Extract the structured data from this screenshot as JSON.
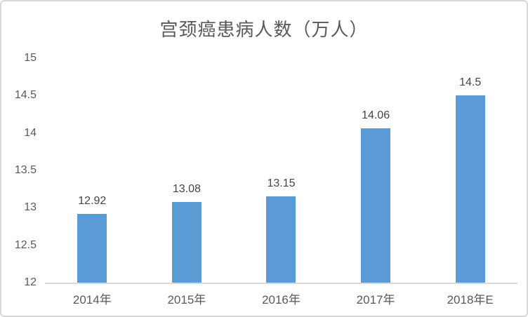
{
  "chart_data": {
    "type": "bar",
    "title": "宫颈癌患病人数（万人）",
    "categories": [
      "2014年",
      "2015年",
      "2016年",
      "2017年",
      "2018年E"
    ],
    "values": [
      12.92,
      13.08,
      13.15,
      14.06,
      14.5
    ],
    "value_labels": [
      "12.92",
      "13.08",
      "13.15",
      "14.06",
      "14.5"
    ],
    "ylim": [
      12,
      15
    ],
    "ytick_labels": [
      "15",
      "14.5",
      "14",
      "13.5",
      "13",
      "12.5",
      "12"
    ],
    "ytick_values": [
      15,
      14.5,
      14,
      13.5,
      13,
      12.5,
      12
    ],
    "grid": false,
    "legend": false,
    "xlabel": "",
    "ylabel": "",
    "bar_color": "#5b9bd5",
    "axis_line_color": "#d9d9d9",
    "frame_border_color": "#d8d8d8",
    "title_color": "#595959",
    "tick_label_color": "#595959",
    "value_label_color": "#444444",
    "background_color": "#ffffff"
  }
}
